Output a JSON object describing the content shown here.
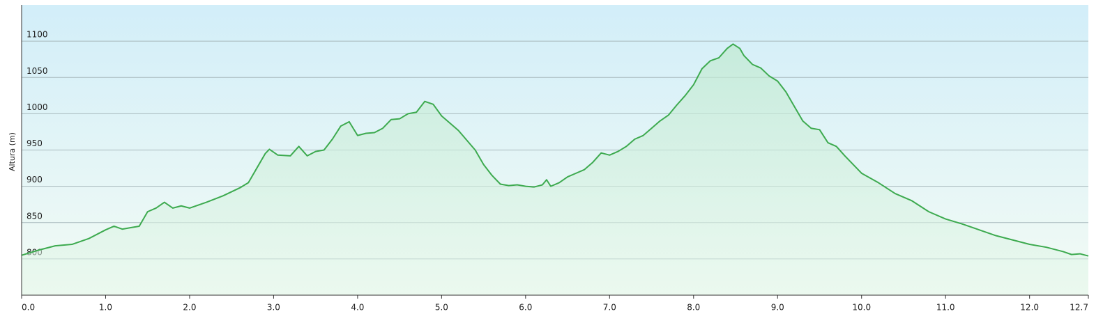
{
  "chart_data": {
    "type": "area",
    "y_label": "Altura (m)",
    "x": [
      0,
      0.2,
      0.4,
      0.6,
      0.8,
      1.0,
      1.1,
      1.2,
      1.3,
      1.4,
      1.5,
      1.6,
      1.7,
      1.8,
      1.9,
      2.0,
      2.2,
      2.4,
      2.6,
      2.7,
      2.8,
      2.9,
      2.95,
      3.05,
      3.2,
      3.3,
      3.4,
      3.5,
      3.6,
      3.7,
      3.8,
      3.9,
      4.0,
      4.1,
      4.2,
      4.3,
      4.4,
      4.5,
      4.6,
      4.7,
      4.8,
      4.9,
      5.0,
      5.2,
      5.4,
      5.5,
      5.6,
      5.7,
      5.8,
      5.9,
      6.0,
      6.1,
      6.2,
      6.25,
      6.3,
      6.4,
      6.5,
      6.6,
      6.7,
      6.8,
      6.9,
      7.0,
      7.1,
      7.2,
      7.3,
      7.4,
      7.5,
      7.6,
      7.7,
      7.8,
      7.9,
      8.0,
      8.1,
      8.2,
      8.3,
      8.4,
      8.47,
      8.55,
      8.6,
      8.7,
      8.8,
      8.9,
      9.0,
      9.1,
      9.2,
      9.3,
      9.4,
      9.5,
      9.6,
      9.7,
      9.8,
      9.9,
      10.0,
      10.2,
      10.4,
      10.6,
      10.8,
      11.0,
      11.2,
      11.4,
      11.6,
      11.8,
      12.0,
      12.2,
      12.4,
      12.5,
      12.6,
      12.7
    ],
    "values": [
      805,
      812,
      818,
      820,
      828,
      840,
      845,
      841,
      843,
      845,
      865,
      870,
      878,
      870,
      873,
      870,
      878,
      887,
      898,
      905,
      925,
      945,
      951,
      943,
      942,
      955,
      942,
      948,
      950,
      965,
      983,
      989,
      970,
      973,
      974,
      980,
      992,
      993,
      1000,
      1002,
      1017,
      1013,
      997,
      977,
      950,
      930,
      915,
      903,
      901,
      902,
      900,
      899,
      902,
      909,
      900,
      905,
      913,
      918,
      923,
      933,
      946,
      943,
      948,
      955,
      965,
      970,
      980,
      990,
      998,
      1012,
      1025,
      1040,
      1062,
      1073,
      1077,
      1090,
      1096,
      1090,
      1080,
      1068,
      1063,
      1052,
      1045,
      1030,
      1010,
      990,
      980,
      978,
      960,
      955,
      942,
      930,
      918,
      905,
      890,
      880,
      865,
      855,
      848,
      840,
      832,
      826,
      820,
      816,
      810,
      806,
      807,
      804
    ],
    "color": "#3daa4f",
    "xlim": [
      0,
      12.7
    ],
    "xticks": [
      {
        "value": 0,
        "label": "0.0"
      },
      {
        "value": 1,
        "label": "1.0"
      },
      {
        "value": 2,
        "label": "2.0"
      },
      {
        "value": 3,
        "label": "3.0"
      },
      {
        "value": 4,
        "label": "4.0"
      },
      {
        "value": 5,
        "label": "5.0"
      },
      {
        "value": 6,
        "label": "6.0"
      },
      {
        "value": 7,
        "label": "7.0"
      },
      {
        "value": 8,
        "label": "8.0"
      },
      {
        "value": 9,
        "label": "9.0"
      },
      {
        "value": 10,
        "label": "10.0"
      },
      {
        "value": 11,
        "label": "11.0"
      },
      {
        "value": 12,
        "label": "12.0"
      },
      12.7
    ],
    "ylim": [
      750,
      1150
    ],
    "yticks": [
      800,
      850,
      900,
      950,
      1000,
      1050,
      1100
    ],
    "grid": true
  }
}
